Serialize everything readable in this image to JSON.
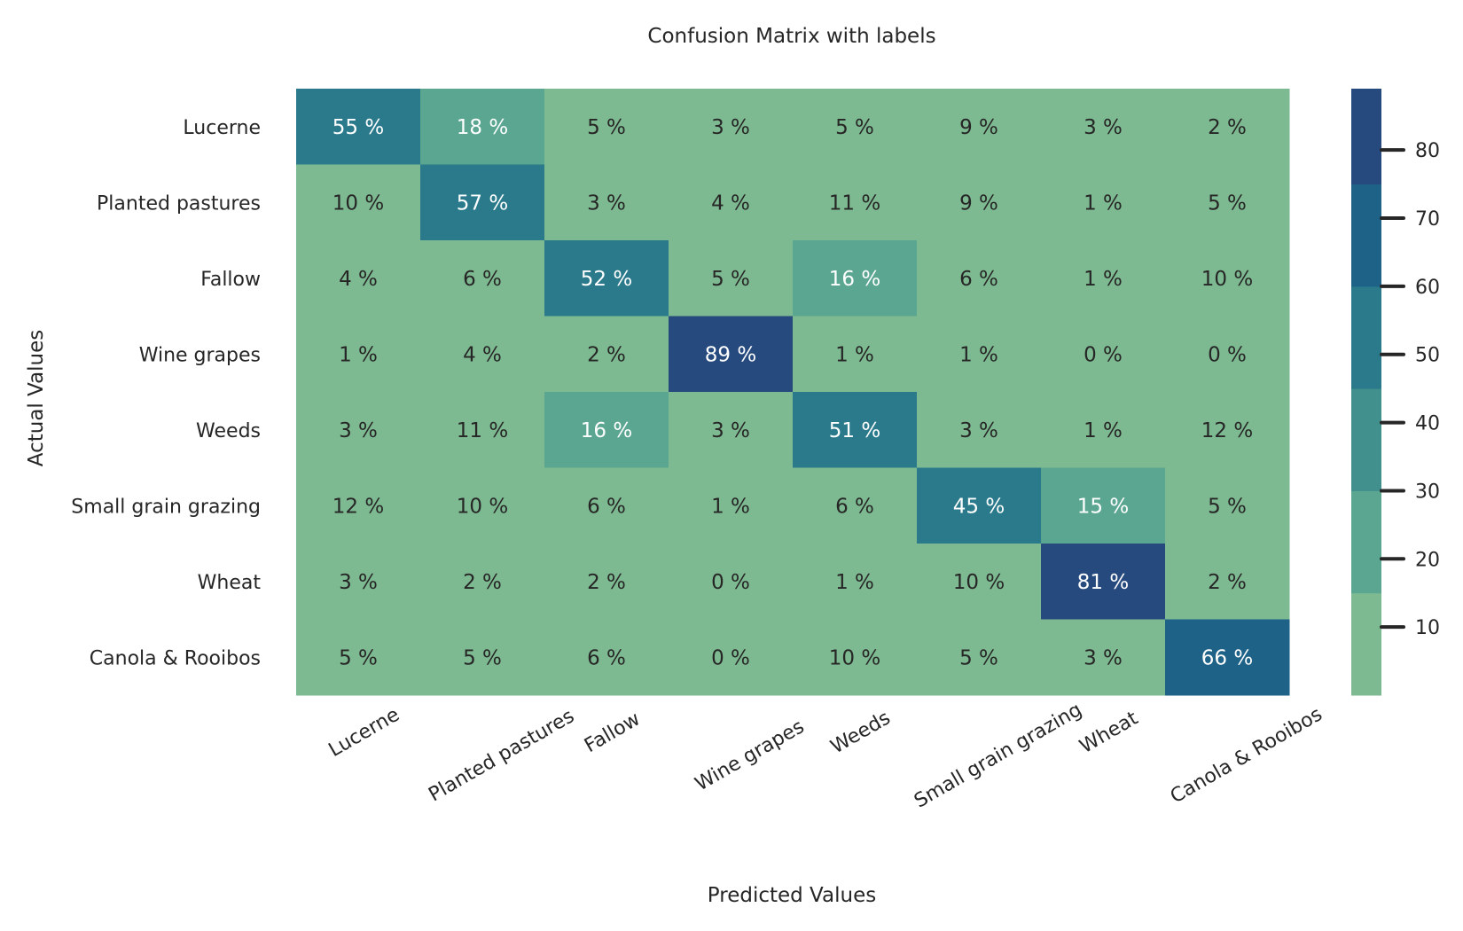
{
  "chart_data": {
    "type": "heatmap",
    "title": "Confusion Matrix with labels",
    "xlabel": "Predicted Values",
    "ylabel": "Actual Values",
    "x_categories": [
      "Lucerne",
      "Planted pastures",
      "Fallow",
      "Wine grapes",
      "Weeds",
      "Small grain grazing",
      "Wheat",
      "Canola & Rooibos"
    ],
    "y_categories": [
      "Lucerne",
      "Planted pastures",
      "Fallow",
      "Wine grapes",
      "Weeds",
      "Small grain grazing",
      "Wheat",
      "Canola & Rooibos"
    ],
    "values": [
      [
        55,
        18,
        5,
        3,
        5,
        9,
        3,
        2
      ],
      [
        10,
        57,
        3,
        4,
        11,
        9,
        1,
        5
      ],
      [
        4,
        6,
        52,
        5,
        16,
        6,
        1,
        10
      ],
      [
        1,
        4,
        2,
        89,
        1,
        1,
        0,
        0
      ],
      [
        3,
        11,
        16,
        3,
        51,
        3,
        1,
        12
      ],
      [
        12,
        10,
        6,
        1,
        6,
        45,
        15,
        5
      ],
      [
        3,
        2,
        2,
        0,
        1,
        10,
        81,
        2
      ],
      [
        5,
        5,
        6,
        0,
        10,
        5,
        3,
        66
      ]
    ],
    "value_suffix": " %",
    "colorbar": {
      "range": [
        0,
        89
      ],
      "ticks": [
        10,
        20,
        30,
        40,
        50,
        60,
        70,
        80
      ],
      "bins": [
        {
          "from": 0,
          "to": 15,
          "color": "#7eba91"
        },
        {
          "from": 15,
          "to": 30,
          "color": "#5aa690"
        },
        {
          "from": 30,
          "to": 45,
          "color": "#42908d"
        },
        {
          "from": 45,
          "to": 60,
          "color": "#2a7a8c"
        },
        {
          "from": 60,
          "to": 75,
          "color": "#1e6287"
        },
        {
          "from": 75,
          "to": 90,
          "color": "#274a7e"
        }
      ]
    },
    "text_colors": {
      "dark": "#262626",
      "light": "#ffffff"
    }
  }
}
